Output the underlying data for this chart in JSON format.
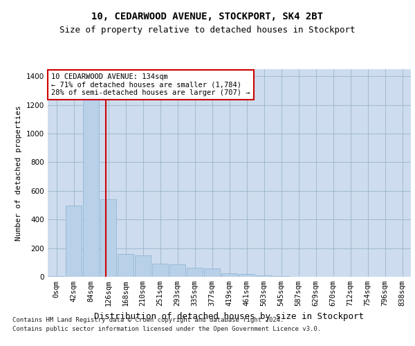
{
  "title1": "10, CEDARWOOD AVENUE, STOCKPORT, SK4 2BT",
  "title2": "Size of property relative to detached houses in Stockport",
  "xlabel": "Distribution of detached houses by size in Stockport",
  "ylabel": "Number of detached properties",
  "bar_labels": [
    "0sqm",
    "42sqm",
    "84sqm",
    "126sqm",
    "168sqm",
    "210sqm",
    "251sqm",
    "293sqm",
    "335sqm",
    "377sqm",
    "419sqm",
    "461sqm",
    "503sqm",
    "545sqm",
    "587sqm",
    "629sqm",
    "670sqm",
    "712sqm",
    "754sqm",
    "796sqm",
    "838sqm"
  ],
  "bar_values": [
    4,
    500,
    1240,
    540,
    160,
    150,
    90,
    85,
    65,
    60,
    25,
    18,
    12,
    3,
    2,
    1,
    1,
    0,
    0,
    0,
    0
  ],
  "bar_color": "#b8d0e8",
  "bar_edge_color": "#8ab0d0",
  "property_line_x": 2.85,
  "property_line_color": "#cc0000",
  "annotation_text": "10 CEDARWOOD AVENUE: 134sqm\n← 71% of detached houses are smaller (1,784)\n28% of semi-detached houses are larger (707) →",
  "annotation_box_color": "#ffffff",
  "annotation_box_edge_color": "#cc0000",
  "ylim": [
    0,
    1450
  ],
  "yticks": [
    0,
    200,
    400,
    600,
    800,
    1000,
    1200,
    1400
  ],
  "bg_color": "#cddcee",
  "footnote1": "Contains HM Land Registry data © Crown copyright and database right 2024.",
  "footnote2": "Contains public sector information licensed under the Open Government Licence v3.0.",
  "title1_fontsize": 10,
  "title2_fontsize": 9,
  "xlabel_fontsize": 9,
  "ylabel_fontsize": 8,
  "tick_fontsize": 7.5,
  "annot_fontsize": 7.5,
  "footnote_fontsize": 6.5
}
